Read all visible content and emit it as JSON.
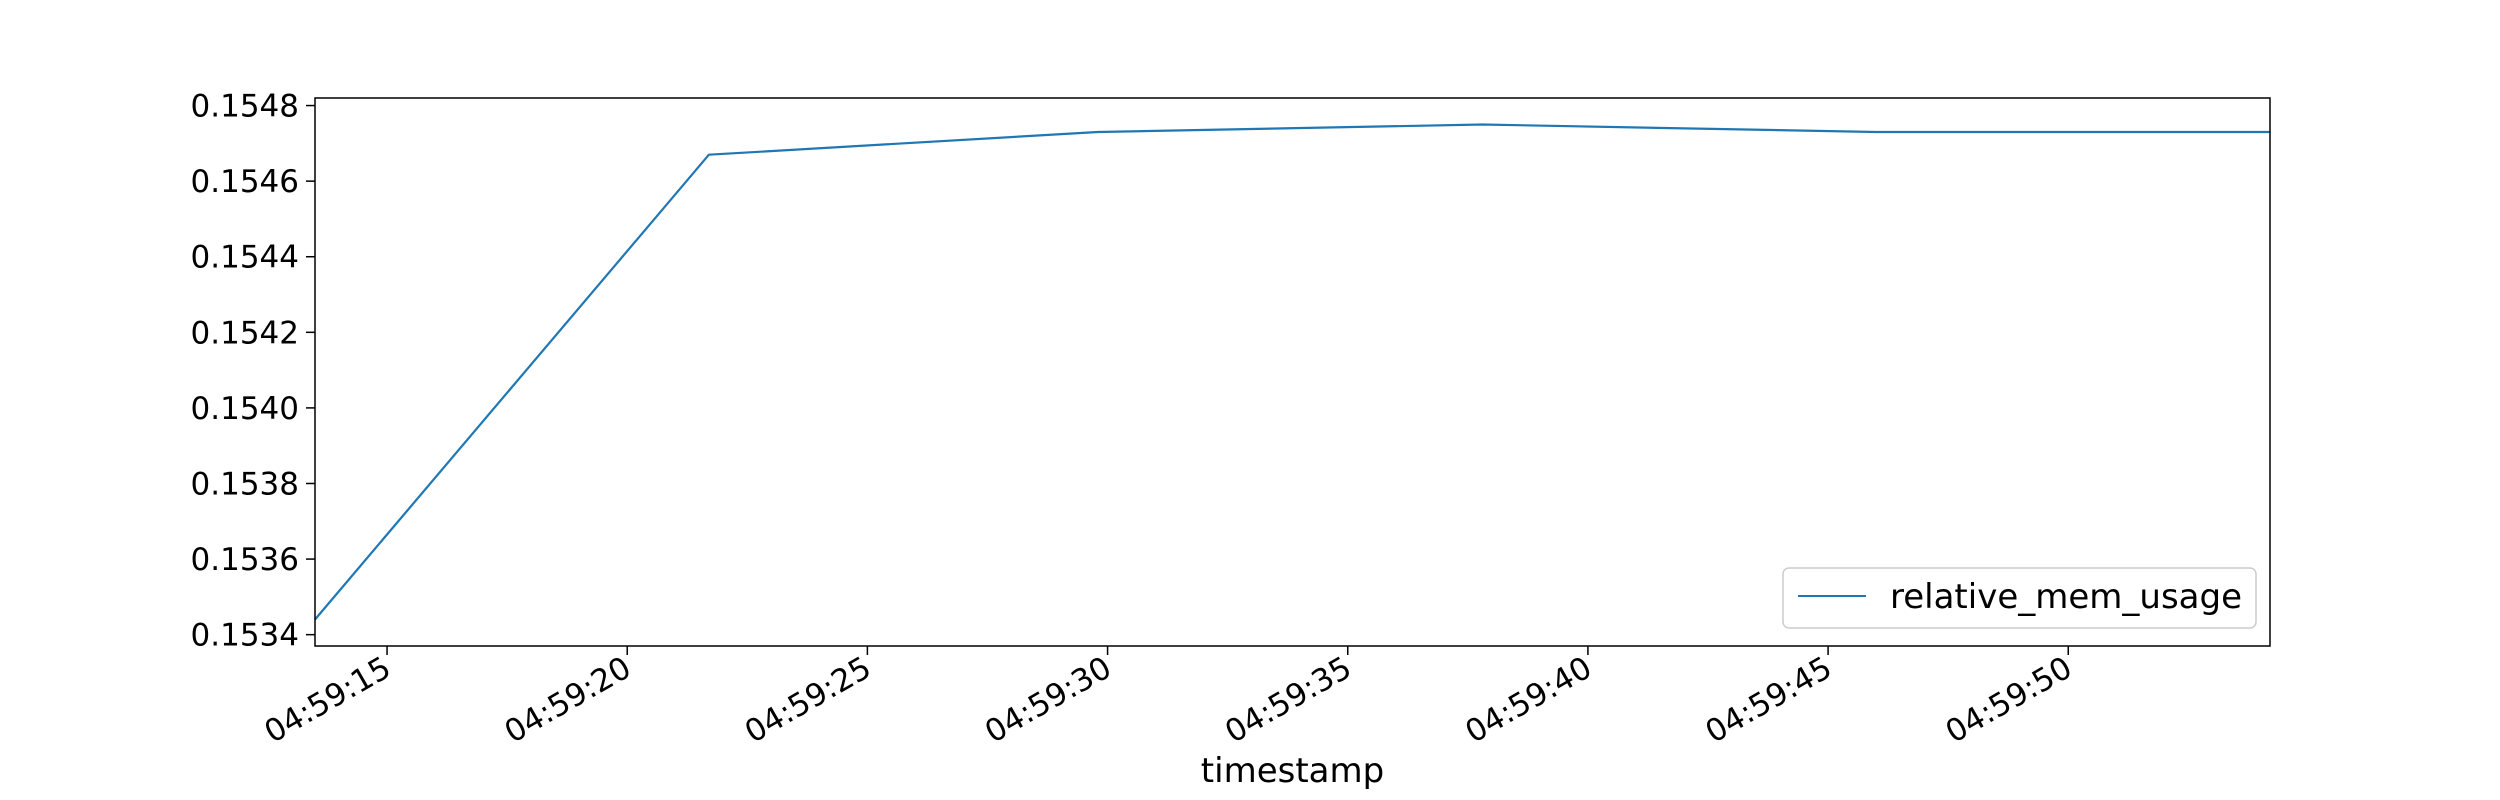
{
  "chart_data": {
    "type": "line",
    "title": "",
    "xlabel": "timestamp",
    "ylabel": "",
    "x_ticks": [
      "04:59:15",
      "04:59:20",
      "04:59:25",
      "04:59:30",
      "04:59:35",
      "04:59:40",
      "04:59:45",
      "04:59:50"
    ],
    "xlim": [
      "04:59:13.5",
      "04:59:54.2"
    ],
    "y_ticks": [
      "0.1534",
      "0.1536",
      "0.1538",
      "0.1540",
      "0.1542",
      "0.1544",
      "0.1546",
      "0.1548"
    ],
    "ylim": [
      0.15337,
      0.15482
    ],
    "grid": false,
    "legend_position": "lower-right",
    "series": [
      {
        "name": "relative_mem_usage",
        "color": "#1f77b4",
        "x": [
          "04:59:13.5",
          "04:59:21.7",
          "04:59:29.8",
          "04:59:37.8",
          "04:59:46",
          "04:59:54.2"
        ],
        "y": [
          0.15344,
          0.15467,
          0.15473,
          0.15475,
          0.15473,
          0.15473
        ]
      }
    ]
  }
}
